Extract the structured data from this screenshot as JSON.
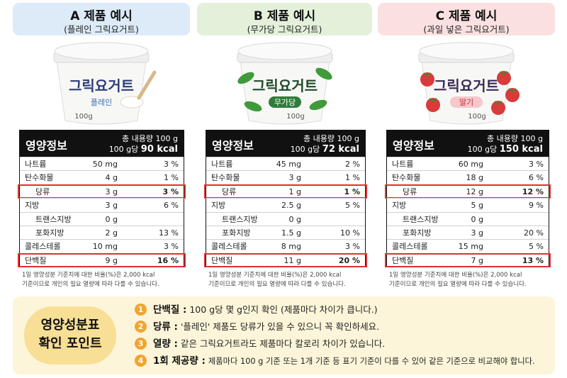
{
  "products": [
    {
      "title": "A 제품 예시",
      "subtitle": "(플레인 그릭요거트)",
      "cup": {
        "brand": "그릭요거트",
        "flavor": "플레인",
        "weight": "100g"
      },
      "table": {
        "title": "영양정보",
        "total": "총 내용량 100 g",
        "per": "100 g당",
        "kcal": "90 kcal",
        "rows": [
          {
            "name": "나트륨",
            "amount": "50 mg",
            "pct": "3 %"
          },
          {
            "name": "탄수화물",
            "amount": "4 g",
            "pct": "1 %"
          },
          {
            "name": "당류",
            "amount": "3 g",
            "pct": "3 %",
            "indent": true,
            "highlight": true
          },
          {
            "name": "지방",
            "amount": "3 g",
            "pct": "6 %"
          },
          {
            "name": "트랜스지방",
            "amount": "0 g",
            "indent": true
          },
          {
            "name": "포화지방",
            "amount": "2 g",
            "pct": "13 %",
            "indent": true
          },
          {
            "name": "콜레스테롤",
            "amount": "10 mg",
            "pct": "3 %"
          },
          {
            "name": "단백질",
            "amount": "9 g",
            "pct": "16 %",
            "highlight": true
          }
        ]
      }
    },
    {
      "title": "B 제품 예시",
      "subtitle": "(무가당 그릭요거트)",
      "cup": {
        "brand": "그릭요거트",
        "flavor": "무가당",
        "weight": "100g"
      },
      "table": {
        "title": "영양정보",
        "total": "총 내용량 100 g",
        "per": "100 g당",
        "kcal": "72 kcal",
        "rows": [
          {
            "name": "나트륨",
            "amount": "45 mg",
            "pct": "2 %"
          },
          {
            "name": "탄수화물",
            "amount": "3 g",
            "pct": "1 %"
          },
          {
            "name": "당류",
            "amount": "1 g",
            "pct": "1 %",
            "indent": true,
            "highlight": true
          },
          {
            "name": "지방",
            "amount": "2.5 g",
            "pct": "5 %"
          },
          {
            "name": "트랜스지방",
            "amount": "0 g",
            "indent": true
          },
          {
            "name": "포화지방",
            "amount": "1.5 g",
            "pct": "10 %",
            "indent": true
          },
          {
            "name": "콜레스테롤",
            "amount": "8 mg",
            "pct": "3 %"
          },
          {
            "name": "단백질",
            "amount": "11 g",
            "pct": "20 %",
            "highlight": true
          }
        ]
      }
    },
    {
      "title": "C 제품 예시",
      "subtitle": "(과일 넣은 그릭요거트)",
      "cup": {
        "brand": "그릭요거트",
        "flavor": "딸기",
        "weight": "100g"
      },
      "table": {
        "title": "영양정보",
        "total": "총 내용량 100 g",
        "per": "100 g당",
        "kcal": "150 kcal",
        "rows": [
          {
            "name": "나트륨",
            "amount": "60 mg",
            "pct": "3 %"
          },
          {
            "name": "탄수화물",
            "amount": "18 g",
            "pct": "6 %"
          },
          {
            "name": "당류",
            "amount": "12 g",
            "pct": "12 %",
            "indent": true,
            "highlight": true
          },
          {
            "name": "지방",
            "amount": "5 g",
            "pct": "9 %"
          },
          {
            "name": "트랜스지방",
            "amount": "0 g",
            "indent": true
          },
          {
            "name": "포화지방",
            "amount": "3 g",
            "pct": "20 %",
            "indent": true
          },
          {
            "name": "콜레스테롤",
            "amount": "15 mg",
            "pct": "5 %"
          },
          {
            "name": "단백질",
            "amount": "7 g",
            "pct": "13 %",
            "highlight": true
          }
        ]
      }
    }
  ],
  "footnote": [
    "1일 영양성분 기준치에 대한 비율(%)은 2,000 kcal",
    "기준이므로 개인의 필요 열량에 따라 다를 수 있습니다."
  ],
  "tips": {
    "title": [
      "영양성분표",
      "확인 포인트"
    ],
    "points": [
      {
        "num": "1",
        "label": "단백질 :",
        "text": "100 g당 몇 g인지 확인 (제품마다 차이가 큽니다.)"
      },
      {
        "num": "2",
        "label": "당류 :",
        "text": "'플레인' 제품도 당류가 있을 수 있으니 꼭 확인하세요."
      },
      {
        "num": "3",
        "label": "열량 :",
        "text": "같은 그릭요거트라도 제품마다 칼로리 차이가 있습니다."
      },
      {
        "num": "4",
        "label": "1회 제공량 :",
        "text": "제품마다 100 g 기준 또는 1개 기준 등 표기 기준이 다를 수 있어 같은 기준으로 비교해야 합니다."
      }
    ]
  }
}
